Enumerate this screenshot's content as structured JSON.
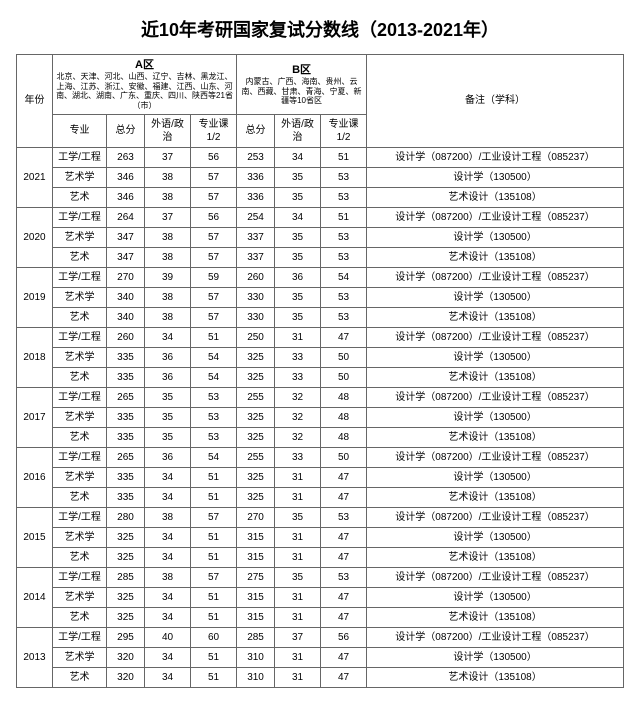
{
  "title": "近10年考研国家复试分数线（2013-2021年）",
  "header": {
    "year": "年份",
    "regionA": "A区",
    "regionA_desc": "北京、天津、河北、山西、辽宁、吉林、黑龙江、上海、江苏、浙江、安徽、福建、江西、山东、河南、湖北、湖南、广东、重庆、四川、陕西等21省（市）",
    "regionB": "B区",
    "regionB_desc": "内蒙古、广西、海南、贵州、云南、西藏、甘肃、青海、宁夏、新疆等10省区",
    "major": "专业",
    "total": "总分",
    "fl_pol": "外语/政治",
    "subj": "专业课1/2",
    "note": "备注（学科）"
  },
  "majors": [
    "工学/工程",
    "艺术学",
    "艺术"
  ],
  "notes": [
    "设计学（087200）/工业设计工程（085237）",
    "设计学（130500）",
    "艺术设计（135108）"
  ],
  "years": [
    {
      "y": "2021",
      "rows": [
        [
          263,
          37,
          56,
          253,
          34,
          51
        ],
        [
          346,
          38,
          57,
          336,
          35,
          53
        ],
        [
          346,
          38,
          57,
          336,
          35,
          53
        ]
      ]
    },
    {
      "y": "2020",
      "rows": [
        [
          264,
          37,
          56,
          254,
          34,
          51
        ],
        [
          347,
          38,
          57,
          337,
          35,
          53
        ],
        [
          347,
          38,
          57,
          337,
          35,
          53
        ]
      ]
    },
    {
      "y": "2019",
      "rows": [
        [
          270,
          39,
          59,
          260,
          36,
          54
        ],
        [
          340,
          38,
          57,
          330,
          35,
          53
        ],
        [
          340,
          38,
          57,
          330,
          35,
          53
        ]
      ]
    },
    {
      "y": "2018",
      "rows": [
        [
          260,
          34,
          51,
          250,
          31,
          47
        ],
        [
          335,
          36,
          54,
          325,
          33,
          50
        ],
        [
          335,
          36,
          54,
          325,
          33,
          50
        ]
      ]
    },
    {
      "y": "2017",
      "rows": [
        [
          265,
          35,
          53,
          255,
          32,
          48
        ],
        [
          335,
          35,
          53,
          325,
          32,
          48
        ],
        [
          335,
          35,
          53,
          325,
          32,
          48
        ]
      ]
    },
    {
      "y": "2016",
      "rows": [
        [
          265,
          36,
          54,
          255,
          33,
          50
        ],
        [
          335,
          34,
          51,
          325,
          31,
          47
        ],
        [
          335,
          34,
          51,
          325,
          31,
          47
        ]
      ]
    },
    {
      "y": "2015",
      "rows": [
        [
          280,
          38,
          57,
          270,
          35,
          53
        ],
        [
          325,
          34,
          51,
          315,
          31,
          47
        ],
        [
          325,
          34,
          51,
          315,
          31,
          47
        ]
      ]
    },
    {
      "y": "2014",
      "rows": [
        [
          285,
          38,
          57,
          275,
          35,
          53
        ],
        [
          325,
          34,
          51,
          315,
          31,
          47
        ],
        [
          325,
          34,
          51,
          315,
          31,
          47
        ]
      ]
    },
    {
      "y": "2013",
      "rows": [
        [
          295,
          40,
          60,
          285,
          37,
          56
        ],
        [
          320,
          34,
          51,
          310,
          31,
          47
        ],
        [
          320,
          34,
          51,
          310,
          31,
          47
        ]
      ]
    }
  ]
}
